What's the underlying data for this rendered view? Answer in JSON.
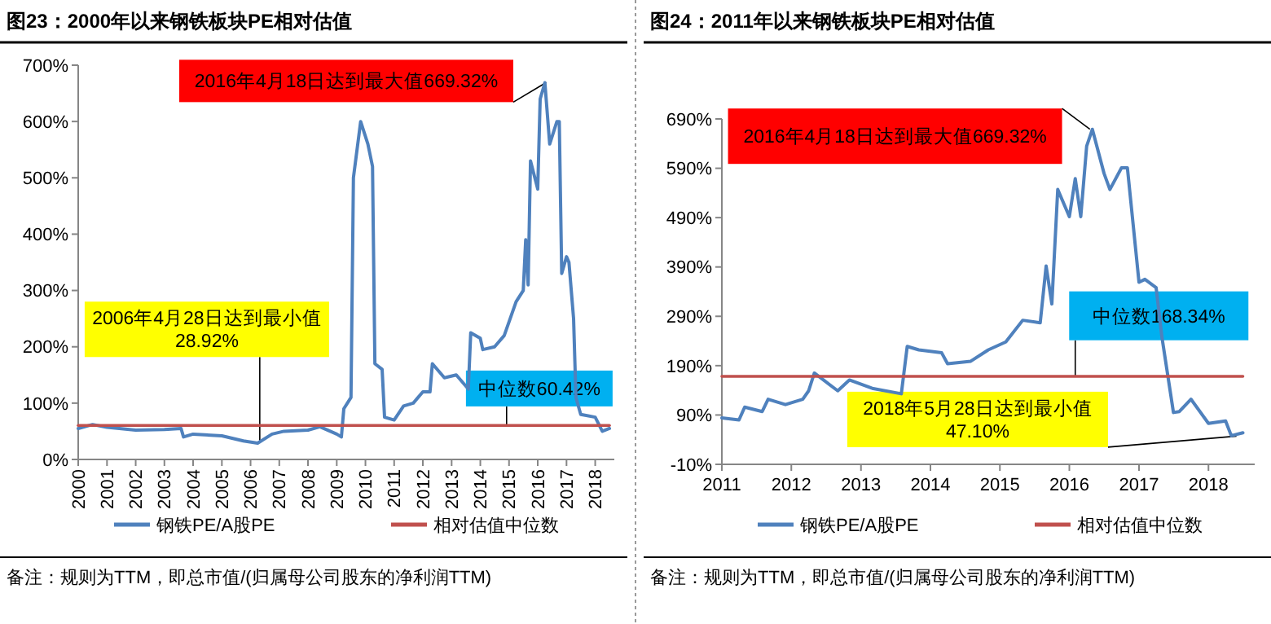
{
  "chart_data": [
    {
      "type": "line",
      "title": "图23：2000年以来钢铁板块PE相对估值",
      "xlim": [
        "2000-01",
        "2018-09"
      ],
      "xticks": [
        "2000",
        "2001",
        "2002",
        "2003",
        "2004",
        "2005",
        "2006",
        "2007",
        "2008",
        "2009",
        "2010",
        "2011",
        "2012",
        "2013",
        "2014",
        "2015",
        "2016",
        "2017",
        "2018"
      ],
      "ylim": [
        0,
        700
      ],
      "yticks": [
        {
          "value": 0,
          "label": "0%"
        },
        {
          "value": 100,
          "label": "100%"
        },
        {
          "value": 200,
          "label": "200%"
        },
        {
          "value": 300,
          "label": "300%"
        },
        {
          "value": 400,
          "label": "400%"
        },
        {
          "value": 500,
          "label": "500%"
        },
        {
          "value": 600,
          "label": "600%"
        },
        {
          "value": 700,
          "label": "700%"
        }
      ],
      "legend": "bottom",
      "series": [
        {
          "name": "钢铁PE/A股PE",
          "color": "#4f81bd",
          "x": [
            "2000-01",
            "2000-07",
            "2001-01",
            "2002-01",
            "2003-01",
            "2003-08",
            "2003-09",
            "2004-01",
            "2005-01",
            "2005-10",
            "2006-04",
            "2006-10",
            "2007-03",
            "2008-01",
            "2008-06",
            "2009-01",
            "2009-03",
            "2009-04",
            "2009-07",
            "2009-08",
            "2009-11",
            "2010-02",
            "2010-04",
            "2010-05",
            "2010-08",
            "2010-09",
            "2011-01",
            "2011-05",
            "2011-09",
            "2012-01",
            "2012-04",
            "2012-05",
            "2012-10",
            "2013-03",
            "2013-08",
            "2013-09",
            "2014-01",
            "2014-02",
            "2014-07",
            "2014-11",
            "2015-04",
            "2015-07",
            "2015-08",
            "2015-09",
            "2015-10",
            "2016-01",
            "2016-02",
            "2016-04",
            "2016-06",
            "2016-09",
            "2016-10",
            "2016-11",
            "2017-01",
            "2017-02",
            "2017-04",
            "2017-05",
            "2017-07",
            "2018-01",
            "2018-04",
            "2018-07"
          ],
          "values": [
            55,
            62,
            57,
            52,
            53,
            55,
            40,
            45,
            42,
            33,
            29,
            45,
            50,
            52,
            58,
            45,
            40,
            90,
            110,
            500,
            600,
            560,
            520,
            170,
            160,
            75,
            70,
            95,
            100,
            120,
            120,
            170,
            145,
            150,
            125,
            225,
            215,
            195,
            200,
            220,
            280,
            300,
            390,
            310,
            530,
            480,
            640,
            669,
            560,
            600,
            600,
            330,
            360,
            350,
            250,
            110,
            80,
            75,
            50,
            55
          ]
        },
        {
          "name": "相对估值中位数",
          "color": "#c0504d",
          "x": [
            "2000-01",
            "2018-07"
          ],
          "values": [
            60.42,
            60.42
          ]
        }
      ],
      "annotations": [
        {
          "text": "2016年4月18日达到最大值669.32%",
          "x": "2016-04-18",
          "y": 669.32
        },
        {
          "text": "2006年4月28日达到最小值28.92%",
          "x": "2006-04-28",
          "y": 28.92
        },
        {
          "text": "中位数60.42%",
          "x": "2014-12",
          "y": 60.42
        },
        "备注：规则为TTM，即总市值/(归属母公司股东的净利润TTM)"
      ]
    },
    {
      "type": "line",
      "title": "图24：2011年以来钢铁板块PE相对估值",
      "xlim": [
        "2011-01",
        "2018-09"
      ],
      "xticks": [
        "2011",
        "2012",
        "2013",
        "2014",
        "2015",
        "2016",
        "2017",
        "2018"
      ],
      "ylim": [
        -10,
        690
      ],
      "yticks": [
        {
          "value": -10,
          "label": "-10%"
        },
        {
          "value": 90,
          "label": "90%"
        },
        {
          "value": 190,
          "label": "190%"
        },
        {
          "value": 290,
          "label": "290%"
        },
        {
          "value": 390,
          "label": "390%"
        },
        {
          "value": 490,
          "label": "490%"
        },
        {
          "value": 590,
          "label": "590%"
        },
        {
          "value": 690,
          "label": "690%"
        }
      ],
      "legend": "bottom",
      "series": [
        {
          "name": "钢铁PE/A股PE",
          "color": "#4f81bd",
          "x": [
            "2011-01",
            "2011-04",
            "2011-05",
            "2011-08",
            "2011-09",
            "2011-12",
            "2012-03",
            "2012-04",
            "2012-05",
            "2012-06",
            "2012-09",
            "2012-11",
            "2013-03",
            "2013-08",
            "2013-09",
            "2013-11",
            "2014-03",
            "2014-04",
            "2014-08",
            "2014-11",
            "2015-02",
            "2015-05",
            "2015-08",
            "2015-09",
            "2015-10",
            "2015-11",
            "2016-01",
            "2016-02",
            "2016-03",
            "2016-04",
            "2016-05",
            "2016-07",
            "2016-08",
            "2016-10",
            "2016-11",
            "2017-01",
            "2017-02",
            "2017-04",
            "2017-05",
            "2017-07",
            "2017-08",
            "2017-10",
            "2018-01",
            "2018-04",
            "2018-05",
            "2018-07"
          ],
          "values": [
            84,
            80,
            106,
            97,
            122,
            111,
            122,
            139,
            175,
            166,
            139,
            161,
            144,
            133,
            229,
            222,
            216,
            194,
            199,
            222,
            238,
            282,
            277,
            392,
            315,
            547,
            492,
            569,
            492,
            635,
            669,
            580,
            547,
            591,
            591,
            359,
            365,
            348,
            249,
            95,
            97,
            122,
            73,
            78,
            48,
            54
          ]
        },
        {
          "name": "相对估值中位数",
          "color": "#c0504d",
          "x": [
            "2011-01",
            "2018-07"
          ],
          "values": [
            168.34,
            168.34
          ]
        }
      ],
      "annotations": [
        {
          "text": "2016年4月18日达到最大值669.32%",
          "x": "2016-04-18",
          "y": 669.32
        },
        {
          "text": "中位数168.34%",
          "x": "2016-02",
          "y": 168.34
        },
        {
          "text": "2018年5月28日达到最小值47.10%",
          "x": "2018-05-28",
          "y": 47.1
        },
        "备注：规则为TTM，即总市值/(归属母公司股东的净利润TTM)"
      ]
    }
  ]
}
